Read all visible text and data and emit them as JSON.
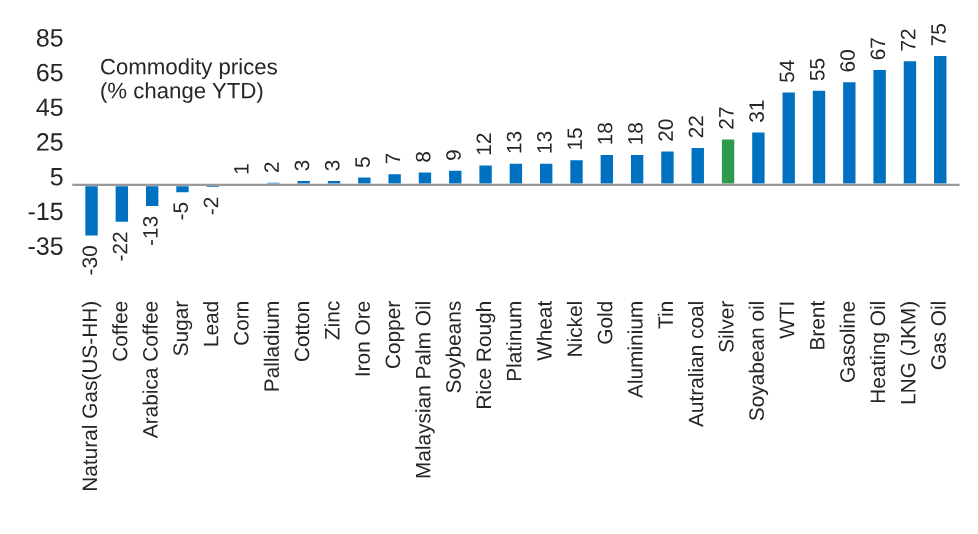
{
  "chart_data": {
    "type": "bar",
    "title": "Commodity prices\n(% change YTD)",
    "categories": [
      "Natural Gas(US-HH)",
      "Coffee",
      "Arabica Coffee",
      "Sugar",
      "Lead",
      "Corn",
      "Palladium",
      "Cotton",
      "Zinc",
      "Iron Ore",
      "Copper",
      "Malaysian Palm Oil",
      "Soybeans",
      "Rice Rough",
      "Platinum",
      "Wheat",
      "Nickel",
      "Gold",
      "Aluminium",
      "Tin",
      "Autralian coal",
      "Silver",
      "Soyabean oil",
      "WTI",
      "Brent",
      "Gasoline",
      "Heating Oil",
      "LNG (JKM)",
      "Gas Oil"
    ],
    "values": [
      -30,
      -22,
      -13,
      -5,
      -2,
      1,
      2,
      3,
      3,
      5,
      7,
      8,
      9,
      12,
      13,
      13,
      15,
      18,
      18,
      20,
      22,
      27,
      31,
      54,
      55,
      60,
      67,
      72,
      75
    ],
    "colors": [
      "#0070c0",
      "#0070c0",
      "#0070c0",
      "#0070c0",
      "#0070c0",
      "#0070c0",
      "#0070c0",
      "#0070c0",
      "#0070c0",
      "#0070c0",
      "#0070c0",
      "#0070c0",
      "#0070c0",
      "#0070c0",
      "#0070c0",
      "#0070c0",
      "#0070c0",
      "#0070c0",
      "#0070c0",
      "#0070c0",
      "#0070c0",
      "#2e9a4e",
      "#0070c0",
      "#0070c0",
      "#0070c0",
      "#0070c0",
      "#0070c0",
      "#0070c0",
      "#0070c0"
    ],
    "ylim": [
      -35,
      85
    ],
    "yticks": [
      -35,
      -15,
      5,
      25,
      45,
      65,
      85
    ],
    "data_labels": true,
    "grid": false,
    "legend": false
  }
}
